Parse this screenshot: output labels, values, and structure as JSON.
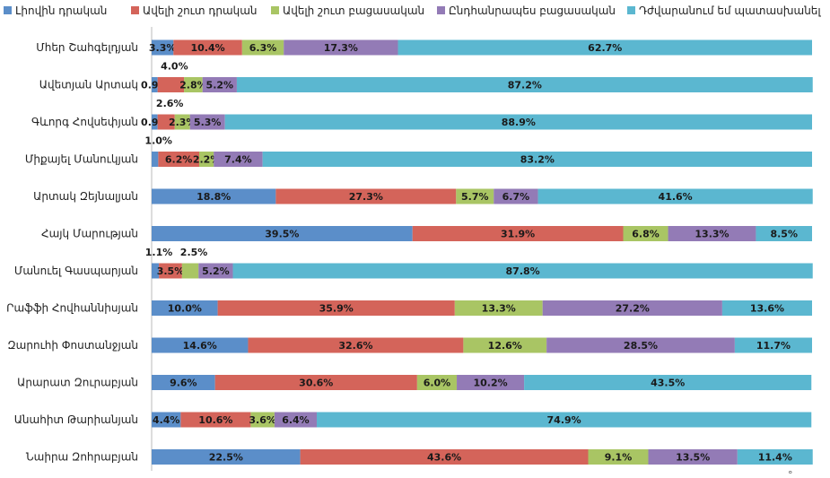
{
  "chart_data": {
    "type": "bar",
    "orientation": "horizontal",
    "stacked": "percent",
    "xlim": [
      0,
      100
    ],
    "grid": false,
    "legend_placement": "top",
    "categories": [
      "Մհեր Շահգելդյան",
      "Ավետյան Արտակ",
      "Գևորգ Հովսեփյան",
      "Միքայել Մանուկյան",
      "Արտակ Զեյնալյան",
      "Հայկ Մարության",
      "Մանուել Գասպարյան",
      "Րաֆֆի Հովհաննիսյան",
      "Զարուհի Փոստանջյան",
      "Արարատ Զուրաբյան",
      "Անահիտ Թարիանյան",
      "Նաիրա Զոհրաբյան"
    ],
    "series": [
      {
        "name": "Լիովին դրական",
        "color": "#5b8ec9",
        "values": [
          3.3,
          0.9,
          0.9,
          1.0,
          18.8,
          39.5,
          1.1,
          10.0,
          14.6,
          9.6,
          4.4,
          22.5
        ]
      },
      {
        "name": "Ավելի շուտ դրական",
        "color": "#d4645a",
        "values": [
          10.4,
          4.0,
          2.6,
          6.2,
          27.3,
          31.9,
          3.5,
          35.9,
          32.6,
          30.6,
          10.6,
          43.6
        ]
      },
      {
        "name": "Ավելի շուտ բացասական",
        "color": "#a9c564",
        "values": [
          6.3,
          2.8,
          2.3,
          2.2,
          5.7,
          6.8,
          2.5,
          13.3,
          12.6,
          6.0,
          3.6,
          9.1
        ]
      },
      {
        "name": "Ընդհանրապես բացասական",
        "color": "#937bb6",
        "values": [
          17.3,
          5.2,
          5.3,
          7.4,
          6.7,
          13.3,
          5.2,
          27.2,
          28.5,
          10.2,
          6.4,
          13.5
        ]
      },
      {
        "name": "Դժվարանում եմ պատասխանել",
        "color": "#5bb7d0",
        "values": [
          62.7,
          87.2,
          88.9,
          83.2,
          41.6,
          8.5,
          87.8,
          13.6,
          11.7,
          43.5,
          74.9,
          11.4
        ]
      }
    ],
    "above_labels": [
      {
        "row": 1,
        "series": 1
      },
      {
        "row": 2,
        "series": 1
      },
      {
        "row": 3,
        "series": 0
      },
      {
        "row": 6,
        "series": 0
      },
      {
        "row": 6,
        "series": 2
      }
    ],
    "corner_mark": "°"
  }
}
